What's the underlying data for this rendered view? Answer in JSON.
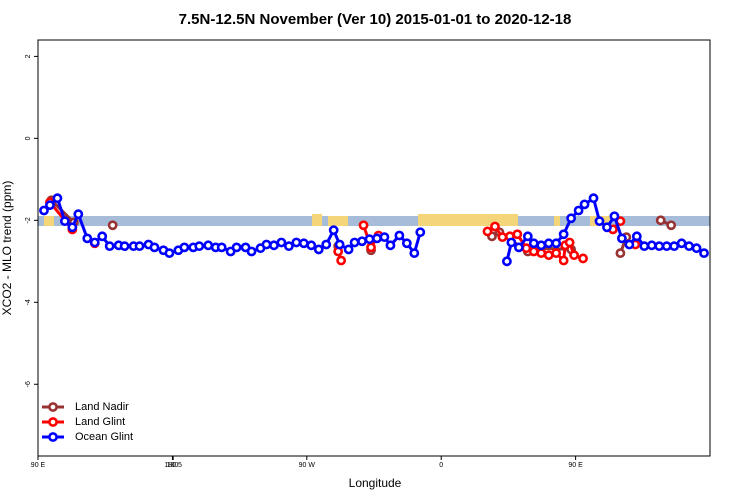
{
  "chart_data": {
    "type": "line",
    "title": "7.5N-12.5N November (Ver 10)   2015-01-01 to 2020-12-18",
    "x_label": "Longitude",
    "y_label": "XCO2 - MLO trend (ppm)",
    "xlim": [
      90,
      540
    ],
    "ylim": [
      -7.75,
      2.4
    ],
    "xticks": [
      {
        "value": 90,
        "label": "90 E"
      },
      180,
      {
        "value": 270,
        "label": "90 W"
      },
      {
        "value": 360,
        "label": "0"
      },
      {
        "value": 450,
        "label": "90 E"
      },
      180.5
    ],
    "yticks": [
      2,
      0,
      -2,
      -4,
      -6
    ],
    "legend": "bottom-left",
    "series": [
      {
        "name": "Land Nadir",
        "color": "#993333",
        "x": [
          99,
          114,
          null,
          140,
          null,
          291,
          null,
          313,
          null,
          394,
          399,
          418,
          427,
          447,
          null,
          480,
          484,
          null,
          507,
          514
        ],
        "values": [
          -1.51,
          -2.05,
          null,
          -2.12,
          null,
          -2.63,
          null,
          -2.73,
          null,
          -2.39,
          -2.29,
          -2.76,
          -2.68,
          -2.71,
          null,
          -2.8,
          -2.41,
          null,
          -2.0,
          -2.12
        ]
      },
      {
        "name": "Land Glint",
        "color": "#ff0000",
        "x": [
          98,
          113,
          null,
          128,
          null,
          291,
          293,
          null,
          308,
          313,
          318,
          null,
          391,
          396,
          401,
          406,
          411,
          417,
          422,
          427,
          432,
          437,
          442,
          443,
          446,
          449,
          455,
          null,
          475,
          480,
          null,
          490
        ],
        "values": [
          -1.56,
          -2.22,
          null,
          -2.56,
          null,
          -2.76,
          -2.98,
          null,
          -2.12,
          -2.66,
          -2.37,
          null,
          -2.27,
          -2.15,
          -2.41,
          -2.39,
          -2.34,
          -2.68,
          -2.76,
          -2.8,
          -2.85,
          -2.8,
          -2.98,
          -2.61,
          -2.54,
          -2.85,
          -2.93,
          null,
          -2.22,
          -2.02,
          null,
          -2.59
        ]
      },
      {
        "name": "Ocean Glint",
        "color": "#0000ff",
        "x": [
          94,
          98,
          103,
          108,
          113,
          117,
          123,
          128,
          133,
          138,
          144,
          148,
          154,
          158,
          164,
          168,
          174,
          178,
          184,
          188,
          194,
          198,
          204,
          209,
          213,
          219,
          223,
          229,
          233,
          239,
          243,
          248,
          253,
          258,
          263,
          268,
          273,
          278,
          283,
          288,
          292,
          298,
          302,
          307,
          312,
          317,
          322,
          326,
          332,
          337,
          342,
          346,
          null,
          404,
          407,
          412,
          418,
          422,
          427,
          432,
          437,
          442,
          447,
          452,
          456,
          462,
          466,
          471,
          476,
          481,
          486,
          491,
          496,
          501,
          506,
          511,
          516,
          521,
          526,
          531,
          536
        ],
        "values": [
          -1.76,
          -1.63,
          -1.46,
          -2.02,
          -2.17,
          -1.85,
          -2.44,
          -2.54,
          -2.39,
          -2.63,
          -2.61,
          -2.63,
          -2.63,
          -2.63,
          -2.59,
          -2.66,
          -2.73,
          -2.8,
          -2.73,
          -2.66,
          -2.66,
          -2.63,
          -2.61,
          -2.66,
          -2.66,
          -2.76,
          -2.66,
          -2.66,
          -2.76,
          -2.68,
          -2.59,
          -2.61,
          -2.54,
          -2.63,
          -2.54,
          -2.56,
          -2.61,
          -2.71,
          -2.59,
          -2.24,
          -2.59,
          -2.71,
          -2.54,
          -2.51,
          -2.46,
          -2.44,
          -2.41,
          -2.61,
          -2.37,
          -2.56,
          -2.8,
          -2.29,
          null,
          -3.0,
          -2.54,
          -2.66,
          -2.39,
          -2.56,
          -2.61,
          -2.56,
          -2.56,
          -2.34,
          -1.95,
          -1.76,
          -1.61,
          -1.46,
          -2.02,
          -2.17,
          -1.9,
          -2.44,
          -2.59,
          -2.39,
          -2.63,
          -2.61,
          -2.63,
          -2.63,
          -2.63,
          -2.56,
          -2.63,
          -2.68,
          -2.8
        ]
      }
    ]
  }
}
